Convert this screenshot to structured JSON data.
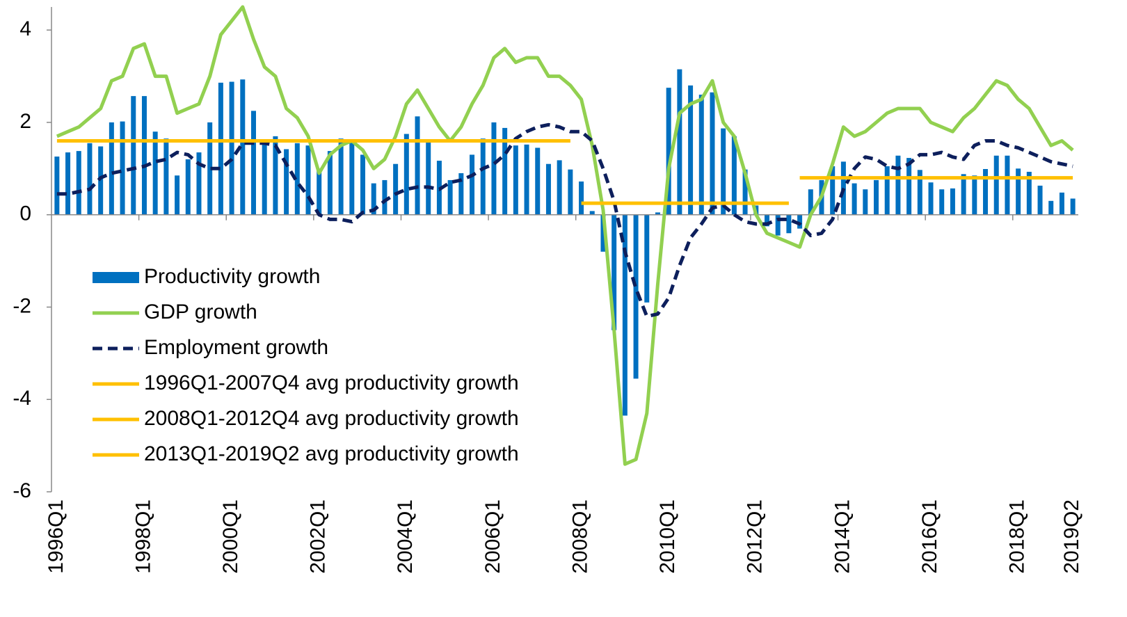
{
  "chart_data": {
    "type": "bar",
    "categories": [
      "1996Q1",
      null,
      null,
      null,
      null,
      null,
      null,
      null,
      "1998Q1",
      null,
      null,
      null,
      null,
      null,
      null,
      null,
      "2000Q1",
      null,
      null,
      null,
      null,
      null,
      null,
      null,
      "2002Q1",
      null,
      null,
      null,
      null,
      null,
      null,
      null,
      "2004Q1",
      null,
      null,
      null,
      null,
      null,
      null,
      null,
      "2006Q1",
      null,
      null,
      null,
      null,
      null,
      null,
      null,
      "2008Q1",
      null,
      null,
      null,
      null,
      null,
      null,
      null,
      "2010Q1",
      null,
      null,
      null,
      null,
      null,
      null,
      null,
      "2012Q1",
      null,
      null,
      null,
      null,
      null,
      null,
      null,
      "2014Q1",
      null,
      null,
      null,
      null,
      null,
      null,
      null,
      "2016Q1",
      null,
      null,
      null,
      null,
      null,
      null,
      null,
      "2018Q1",
      null,
      null,
      null,
      null,
      "2019Q2"
    ],
    "ylim": [
      -6,
      4.5
    ],
    "yticks": [
      -6,
      -4,
      -2,
      0,
      2,
      4
    ],
    "legend": "left",
    "series": [
      {
        "name": "Productivity growth",
        "kind": "bar",
        "color": "#0070c0",
        "values": [
          1.26,
          1.35,
          1.38,
          1.55,
          1.48,
          2.0,
          2.02,
          2.57,
          2.57,
          1.8,
          1.65,
          0.85,
          1.2,
          1.35,
          2.0,
          2.86,
          2.88,
          2.93,
          2.25,
          1.55,
          1.7,
          1.42,
          1.55,
          1.5,
          1.0,
          1.38,
          1.65,
          1.6,
          1.3,
          0.68,
          0.75,
          1.1,
          1.75,
          2.13,
          1.58,
          1.17,
          0.75,
          0.9,
          1.3,
          1.65,
          2.0,
          1.88,
          1.5,
          1.52,
          1.45,
          1.1,
          1.18,
          0.98,
          0.72,
          0.08,
          -0.8,
          -2.5,
          -4.35,
          -3.55,
          -1.9,
          0.05,
          2.75,
          3.15,
          2.8,
          2.6,
          2.65,
          1.87,
          1.7,
          0.98,
          0.2,
          -0.25,
          -0.45,
          -0.4,
          -0.3,
          0.55,
          0.75,
          1.05,
          1.15,
          0.68,
          0.55,
          0.75,
          1.05,
          1.28,
          1.23,
          0.97,
          0.7,
          0.55,
          0.57,
          0.88,
          0.85,
          0.99,
          1.28,
          1.28,
          1.0,
          0.93,
          0.63,
          0.3,
          0.48,
          0.35
        ]
      },
      {
        "name": "GDP growth",
        "kind": "line",
        "color": "#92d050",
        "values": [
          1.7,
          1.8,
          1.9,
          2.1,
          2.3,
          2.9,
          3.0,
          3.6,
          3.7,
          3.0,
          3.0,
          2.2,
          2.3,
          2.4,
          3.0,
          3.9,
          4.2,
          4.5,
          3.8,
          3.2,
          3.0,
          2.3,
          2.1,
          1.7,
          0.9,
          1.3,
          1.5,
          1.6,
          1.4,
          1.0,
          1.2,
          1.7,
          2.4,
          2.7,
          2.3,
          1.9,
          1.6,
          1.9,
          2.4,
          2.8,
          3.4,
          3.6,
          3.3,
          3.4,
          3.4,
          3.0,
          3.0,
          2.8,
          2.5,
          1.5,
          0.1,
          -2.5,
          -5.4,
          -5.3,
          -4.3,
          -1.5,
          1.0,
          2.2,
          2.4,
          2.5,
          2.9,
          2.0,
          1.7,
          0.9,
          0.0,
          -0.4,
          -0.5,
          -0.6,
          -0.7,
          0.0,
          0.4,
          1.1,
          1.9,
          1.7,
          1.8,
          2.0,
          2.2,
          2.3,
          2.3,
          2.3,
          2.0,
          1.9,
          1.8,
          2.1,
          2.3,
          2.6,
          2.9,
          2.8,
          2.5,
          2.3,
          1.9,
          1.5,
          1.6,
          1.4
        ]
      },
      {
        "name": "Employment growth",
        "kind": "line",
        "dashed": true,
        "color": "#0d1f5c",
        "values": [
          0.45,
          0.45,
          0.5,
          0.55,
          0.8,
          0.9,
          0.95,
          1.0,
          1.05,
          1.15,
          1.2,
          1.35,
          1.3,
          1.1,
          1.0,
          1.0,
          1.2,
          1.55,
          1.55,
          1.55,
          1.5,
          1.1,
          0.7,
          0.4,
          0.0,
          -0.1,
          -0.1,
          -0.15,
          0.05,
          0.1,
          0.3,
          0.45,
          0.55,
          0.6,
          0.6,
          0.55,
          0.7,
          0.75,
          0.85,
          1.0,
          1.1,
          1.3,
          1.65,
          1.8,
          1.9,
          1.95,
          1.9,
          1.8,
          1.8,
          1.6,
          1.0,
          0.3,
          -0.8,
          -1.6,
          -2.2,
          -2.15,
          -1.8,
          -1.1,
          -0.5,
          -0.2,
          0.15,
          0.2,
          0.0,
          -0.15,
          -0.2,
          -0.2,
          -0.1,
          -0.1,
          -0.2,
          -0.45,
          -0.4,
          -0.1,
          0.55,
          1.0,
          1.25,
          1.2,
          1.05,
          1.0,
          1.1,
          1.3,
          1.3,
          1.35,
          1.25,
          1.2,
          1.5,
          1.6,
          1.6,
          1.5,
          1.45,
          1.35,
          1.25,
          1.15,
          1.1,
          1.05
        ]
      },
      {
        "name": "1996Q1-2007Q4 avg productivity growth",
        "kind": "line",
        "color": "#ffc000",
        "values": [
          1.6,
          1.6,
          1.6,
          1.6,
          1.6,
          1.6,
          1.6,
          1.6,
          1.6,
          1.6,
          1.6,
          1.6,
          1.6,
          1.6,
          1.6,
          1.6,
          1.6,
          1.6,
          1.6,
          1.6,
          1.6,
          1.6,
          1.6,
          1.6,
          1.6,
          1.6,
          1.6,
          1.6,
          1.6,
          1.6,
          1.6,
          1.6,
          1.6,
          1.6,
          1.6,
          1.6,
          1.6,
          1.6,
          1.6,
          1.6,
          1.6,
          1.6,
          1.6,
          1.6,
          1.6,
          1.6,
          1.6,
          1.6,
          null,
          null,
          null,
          null,
          null,
          null,
          null,
          null,
          null,
          null,
          null,
          null,
          null,
          null,
          null,
          null,
          null,
          null,
          null,
          null,
          null,
          null,
          null,
          null,
          null,
          null,
          null,
          null,
          null,
          null,
          null,
          null,
          null,
          null,
          null,
          null,
          null,
          null,
          null,
          null,
          null,
          null,
          null,
          null,
          null,
          null
        ]
      },
      {
        "name": "2008Q1-2012Q4 avg productivity growth",
        "kind": "line",
        "color": "#ffc000",
        "values": [
          null,
          null,
          null,
          null,
          null,
          null,
          null,
          null,
          null,
          null,
          null,
          null,
          null,
          null,
          null,
          null,
          null,
          null,
          null,
          null,
          null,
          null,
          null,
          null,
          null,
          null,
          null,
          null,
          null,
          null,
          null,
          null,
          null,
          null,
          null,
          null,
          null,
          null,
          null,
          null,
          null,
          null,
          null,
          null,
          null,
          null,
          null,
          null,
          0.25,
          0.25,
          0.25,
          0.25,
          0.25,
          0.25,
          0.25,
          0.25,
          0.25,
          0.25,
          0.25,
          0.25,
          0.25,
          0.25,
          0.25,
          0.25,
          0.25,
          0.25,
          0.25,
          0.25,
          null,
          null,
          null,
          null,
          null,
          null,
          null,
          null,
          null,
          null,
          null,
          null,
          null,
          null,
          null,
          null,
          null,
          null,
          null,
          null,
          null,
          null,
          null,
          null,
          null,
          null
        ]
      },
      {
        "name": "2013Q1-2019Q2 avg productivity growth",
        "kind": "line",
        "color": "#ffc000",
        "values": [
          null,
          null,
          null,
          null,
          null,
          null,
          null,
          null,
          null,
          null,
          null,
          null,
          null,
          null,
          null,
          null,
          null,
          null,
          null,
          null,
          null,
          null,
          null,
          null,
          null,
          null,
          null,
          null,
          null,
          null,
          null,
          null,
          null,
          null,
          null,
          null,
          null,
          null,
          null,
          null,
          null,
          null,
          null,
          null,
          null,
          null,
          null,
          null,
          null,
          null,
          null,
          null,
          null,
          null,
          null,
          null,
          null,
          null,
          null,
          null,
          null,
          null,
          null,
          null,
          null,
          null,
          null,
          null,
          0.8,
          0.8,
          0.8,
          0.8,
          0.8,
          0.8,
          0.8,
          0.8,
          0.8,
          0.8,
          0.8,
          0.8,
          0.8,
          0.8,
          0.8,
          0.8,
          0.8,
          0.8,
          0.8,
          0.8,
          0.8,
          0.8,
          0.8,
          0.8,
          0.8,
          0.8
        ]
      }
    ]
  }
}
